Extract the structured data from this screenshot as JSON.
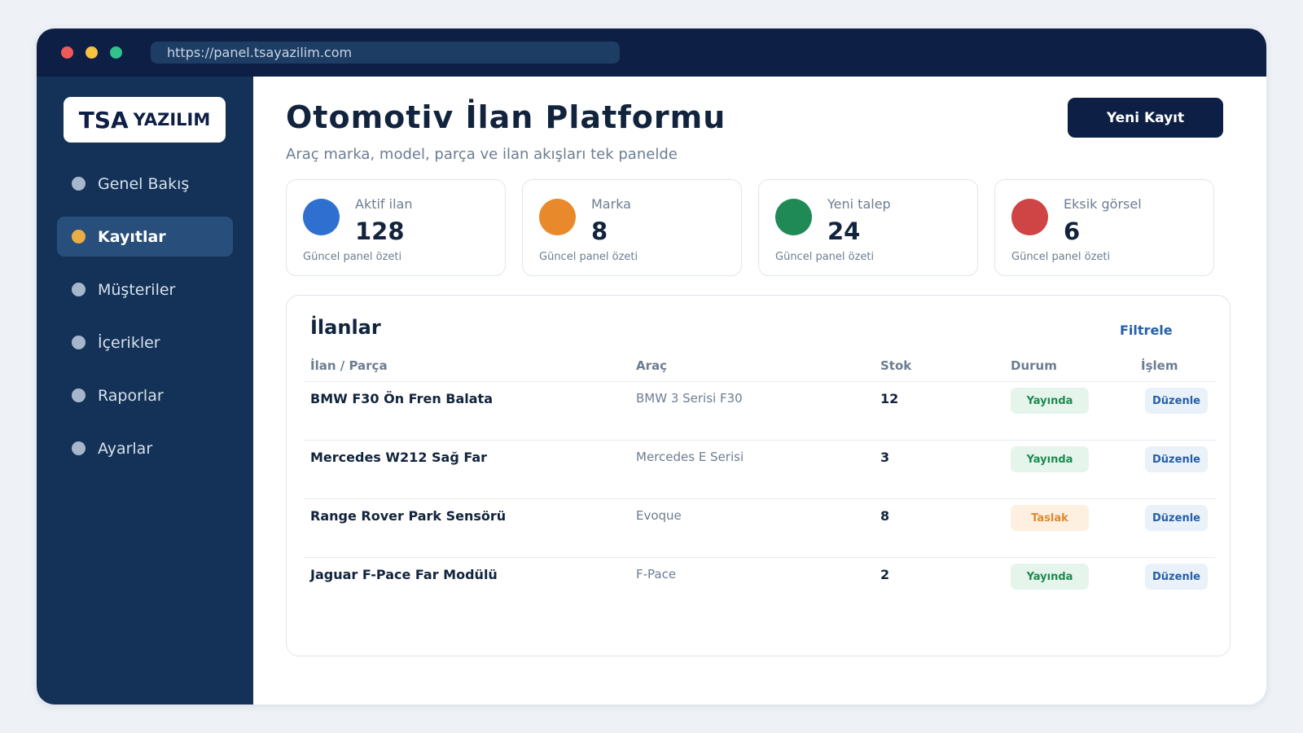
{
  "browser": {
    "url": "https://panel.tsayazilim.com"
  },
  "sidebar": {
    "logo": {
      "strong": "TSA",
      "light": "YAZILIM"
    },
    "items": [
      {
        "label": "Genel Bakış",
        "active": false
      },
      {
        "label": "Kayıtlar",
        "active": true
      },
      {
        "label": "Müşteriler",
        "active": false
      },
      {
        "label": "İçerikler",
        "active": false
      },
      {
        "label": "Raporlar",
        "active": false
      },
      {
        "label": "Ayarlar",
        "active": false
      }
    ]
  },
  "header": {
    "title": "Otomotiv İlan Platformu",
    "subtitle": "Araç marka, model, parça ve ilan akışları tek panelde",
    "new_button": "Yeni Kayıt"
  },
  "stats": [
    {
      "label": "Aktif ilan",
      "value": "128",
      "foot": "Güncel panel özeti",
      "color": "#2f6fcf"
    },
    {
      "label": "Marka",
      "value": "8",
      "foot": "Güncel panel özeti",
      "color": "#e8892b"
    },
    {
      "label": "Yeni talep",
      "value": "24",
      "foot": "Güncel panel özeti",
      "color": "#1f8a55"
    },
    {
      "label": "Eksik görsel",
      "value": "6",
      "foot": "Güncel panel özeti",
      "color": "#cf4444"
    }
  ],
  "table": {
    "title": "İlanlar",
    "filter": "Filtrele",
    "columns": [
      "İlan / Parça",
      "Araç",
      "Stok",
      "Durum",
      "İşlem"
    ],
    "rows": [
      {
        "name": "BMW F30 Ön Fren Balata",
        "vehicle": "BMW 3 Serisi F30",
        "stock": "12",
        "status": "Yayında",
        "action": "Düzenle"
      },
      {
        "name": "Mercedes W212 Sağ Far",
        "vehicle": "Mercedes E Serisi",
        "stock": "3",
        "status": "Yayında",
        "action": "Düzenle"
      },
      {
        "name": "Range Rover Park Sensörü",
        "vehicle": "Evoque",
        "stock": "8",
        "status": "Taslak",
        "action": "Düzenle"
      },
      {
        "name": "Jaguar F-Pace Far Modülü",
        "vehicle": "F-Pace",
        "stock": "2",
        "status": "Yayında",
        "action": "Düzenle"
      }
    ]
  },
  "colors": {
    "titlebar": "#0e1f45",
    "sidebar": "#143257",
    "active_item": "#284f7b",
    "accent": "#e8ae43",
    "published": "#1c8a4f",
    "draft": "#e0882d"
  }
}
